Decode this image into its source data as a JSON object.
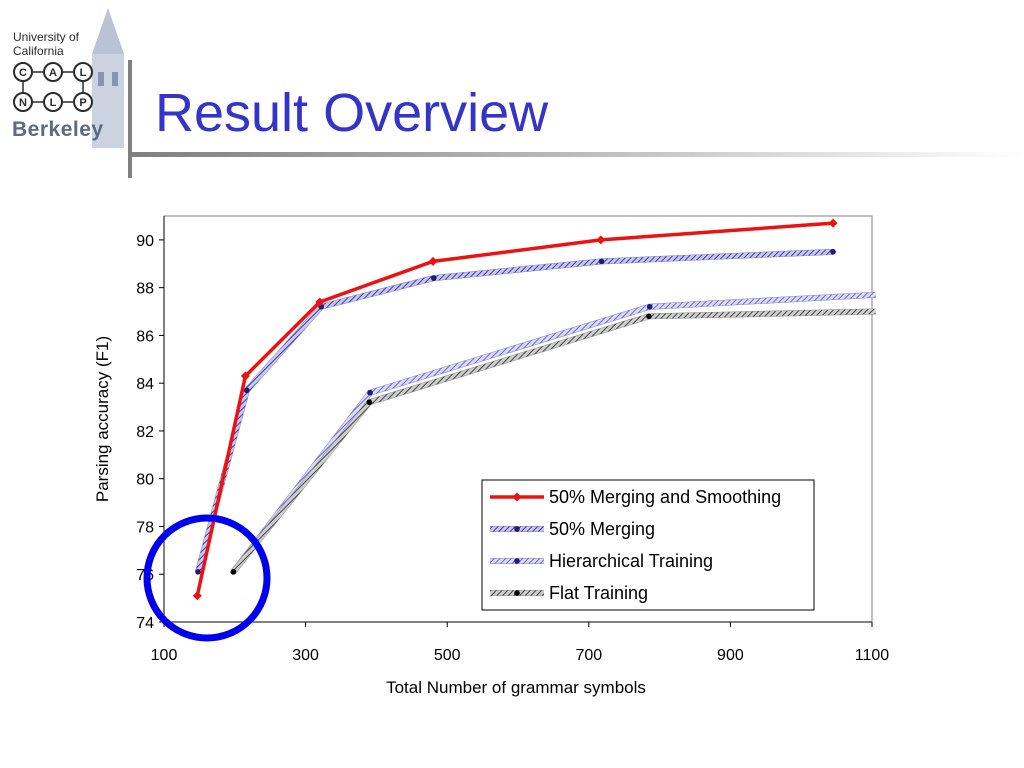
{
  "slide": {
    "title": "Result Overview",
    "logo": {
      "university": "University of California",
      "letters": [
        "C",
        "A",
        "L",
        "N",
        "L",
        "P"
      ],
      "campus": "Berkeley"
    }
  },
  "chart_data": {
    "type": "line",
    "title": "",
    "xlabel": "Total Number of grammar symbols",
    "ylabel": "Parsing accuracy (F1)",
    "xlim": [
      100,
      1100
    ],
    "ylim": [
      74,
      91
    ],
    "xticks": [
      100,
      300,
      500,
      700,
      900,
      1100
    ],
    "yticks": [
      74,
      76,
      78,
      80,
      82,
      84,
      86,
      88,
      90
    ],
    "grid": false,
    "legend_position": "bottom-right",
    "series": [
      {
        "name": "50% Merging and Smoothing",
        "color": "#ee1111",
        "style": "solid",
        "x": [
          147,
          215,
          320,
          480,
          717,
          1045
        ],
        "y": [
          75.1,
          84.3,
          87.4,
          89.1,
          90.0,
          90.7
        ]
      },
      {
        "name": "50% Merging",
        "color": "#3a3ac0",
        "style": "hatched",
        "x": [
          148,
          217,
          322,
          481,
          718,
          1045
        ],
        "y": [
          76.1,
          83.7,
          87.2,
          88.4,
          89.1,
          89.5
        ]
      },
      {
        "name": "Hierarchical Training",
        "color": "#6666ee",
        "style": "hatched",
        "x": [
          198,
          391,
          786,
          1110
        ],
        "y": [
          76.1,
          83.6,
          87.2,
          87.7
        ]
      },
      {
        "name": "Flat Training",
        "color": "#555555",
        "style": "hatched",
        "x": [
          198,
          390,
          785,
          1110
        ],
        "y": [
          76.1,
          83.2,
          86.8,
          87.0
        ]
      }
    ],
    "annotations": [
      {
        "type": "circle",
        "color": "#0000ee",
        "around": "lower-left points near x=148"
      }
    ]
  }
}
